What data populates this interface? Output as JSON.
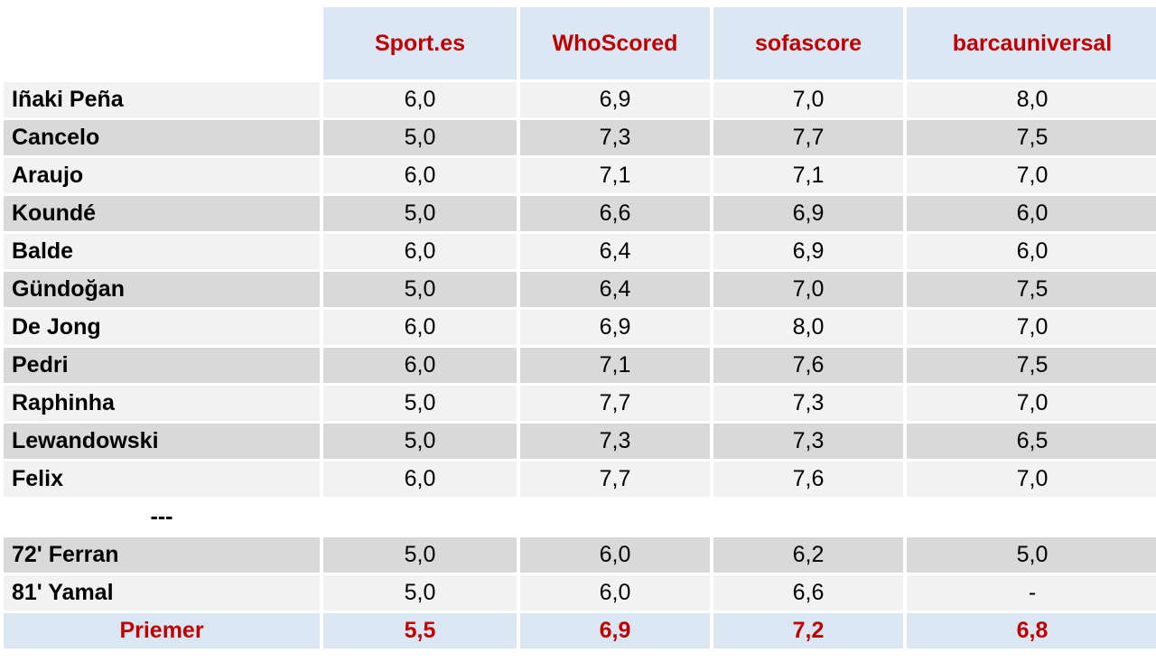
{
  "colors": {
    "header_bg": "#dbe8f4",
    "row_light": "#f2f2f2",
    "row_dark": "#d9d9d9",
    "summary_bg": "#dae7f3",
    "accent_red": "#c00000",
    "text": "#000000"
  },
  "table": {
    "columns": [
      {
        "label": "Sport.es"
      },
      {
        "label": "WhoScored"
      },
      {
        "label": "sofascore"
      },
      {
        "label": "barcauniversal"
      }
    ],
    "rows": [
      {
        "name": "Iñaki Peña",
        "values": [
          "6,0",
          "6,9",
          "7,0",
          "8,0"
        ],
        "style": "light"
      },
      {
        "name": "Cancelo",
        "values": [
          "5,0",
          "7,3",
          "7,7",
          "7,5"
        ],
        "style": "dark"
      },
      {
        "name": "Araujo",
        "values": [
          "6,0",
          "7,1",
          "7,1",
          "7,0"
        ],
        "style": "light"
      },
      {
        "name": "Koundé",
        "values": [
          "5,0",
          "6,6",
          "6,9",
          "6,0"
        ],
        "style": "dark"
      },
      {
        "name": "Balde",
        "values": [
          "6,0",
          "6,4",
          "6,9",
          "6,0"
        ],
        "style": "light"
      },
      {
        "name": "Gündoğan",
        "values": [
          "5,0",
          "6,4",
          "7,0",
          "7,5"
        ],
        "style": "dark"
      },
      {
        "name": "De Jong",
        "values": [
          "6,0",
          "6,9",
          "8,0",
          "7,0"
        ],
        "style": "light"
      },
      {
        "name": "Pedri",
        "values": [
          "6,0",
          "7,1",
          "7,6",
          "7,5"
        ],
        "style": "dark"
      },
      {
        "name": "Raphinha",
        "values": [
          "5,0",
          "7,7",
          "7,3",
          "7,0"
        ],
        "style": "light"
      },
      {
        "name": "Lewandowski",
        "values": [
          "5,0",
          "7,3",
          "7,3",
          "6,5"
        ],
        "style": "dark"
      },
      {
        "name": "Felix",
        "values": [
          "6,0",
          "7,7",
          "7,6",
          "7,0"
        ],
        "style": "light"
      },
      {
        "name": "---",
        "values": [
          "",
          "",
          "",
          ""
        ],
        "style": "separator"
      },
      {
        "name": "72' Ferran",
        "values": [
          "5,0",
          "6,0",
          "6,2",
          "5,0"
        ],
        "style": "dark"
      },
      {
        "name": "81' Yamal",
        "values": [
          "5,0",
          "6,0",
          "6,6",
          "-"
        ],
        "style": "light"
      },
      {
        "name": "Priemer",
        "values": [
          "5,5",
          "6,9",
          "7,2",
          "6,8"
        ],
        "style": "summary"
      }
    ]
  },
  "chart_data": {
    "type": "table",
    "title": "",
    "categories": [
      "Sport.es",
      "WhoScored",
      "sofascore",
      "barcauniversal"
    ],
    "series": [
      {
        "name": "Iñaki Peña",
        "values": [
          6.0,
          6.9,
          7.0,
          8.0
        ]
      },
      {
        "name": "Cancelo",
        "values": [
          5.0,
          7.3,
          7.7,
          7.5
        ]
      },
      {
        "name": "Araujo",
        "values": [
          6.0,
          7.1,
          7.1,
          7.0
        ]
      },
      {
        "name": "Koundé",
        "values": [
          5.0,
          6.6,
          6.9,
          6.0
        ]
      },
      {
        "name": "Balde",
        "values": [
          6.0,
          6.4,
          6.9,
          6.0
        ]
      },
      {
        "name": "Gündoğan",
        "values": [
          5.0,
          6.4,
          7.0,
          7.5
        ]
      },
      {
        "name": "De Jong",
        "values": [
          6.0,
          6.9,
          8.0,
          7.0
        ]
      },
      {
        "name": "Pedri",
        "values": [
          6.0,
          7.1,
          7.6,
          7.5
        ]
      },
      {
        "name": "Raphinha",
        "values": [
          5.0,
          7.7,
          7.3,
          7.0
        ]
      },
      {
        "name": "Lewandowski",
        "values": [
          5.0,
          7.3,
          7.3,
          6.5
        ]
      },
      {
        "name": "Felix",
        "values": [
          6.0,
          7.7,
          7.6,
          7.0
        ]
      },
      {
        "name": "72' Ferran",
        "values": [
          5.0,
          6.0,
          6.2,
          5.0
        ]
      },
      {
        "name": "81' Yamal",
        "values": [
          5.0,
          6.0,
          6.6,
          null
        ]
      },
      {
        "name": "Priemer",
        "values": [
          5.5,
          6.9,
          7.2,
          6.8
        ]
      }
    ],
    "notes": "Decimal comma formatting; 'Priemer' row is the per-source average highlighted in red on blue; '-' means no rating given."
  }
}
